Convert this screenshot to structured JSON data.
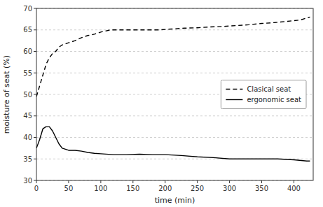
{
  "chart_data": {
    "type": "line",
    "xlabel": "time (min)",
    "ylabel": "moisture of seat (%)",
    "xlim": [
      0,
      430
    ],
    "ylim": [
      30,
      70
    ],
    "xticks": [
      0,
      50,
      100,
      150,
      200,
      250,
      300,
      350,
      400
    ],
    "yticks": [
      30,
      35,
      40,
      45,
      50,
      55,
      60,
      65,
      70
    ],
    "grid": true,
    "legend": "right",
    "series": [
      {
        "name": "Clasical seat",
        "color": "#000000",
        "line_style": "dashed",
        "x": [
          0,
          5,
          10,
          15,
          20,
          25,
          30,
          35,
          40,
          50,
          60,
          70,
          80,
          90,
          100,
          115,
          130,
          150,
          170,
          190,
          210,
          230,
          250,
          270,
          290,
          310,
          330,
          350,
          370,
          390,
          410,
          425
        ],
        "values": [
          49.5,
          52.0,
          54.5,
          57.0,
          58.5,
          59.5,
          60.0,
          61.0,
          61.5,
          62.0,
          62.5,
          63.2,
          63.7,
          64.0,
          64.5,
          65.0,
          65.0,
          65.0,
          65.0,
          65.0,
          65.2,
          65.4,
          65.5,
          65.7,
          65.8,
          66.0,
          66.2,
          66.5,
          66.7,
          67.0,
          67.3,
          68.0
        ]
      },
      {
        "name": "ergonomic seat",
        "color": "#000000",
        "line_style": "solid",
        "x": [
          0,
          5,
          10,
          15,
          20,
          25,
          30,
          35,
          40,
          50,
          60,
          70,
          80,
          90,
          100,
          120,
          140,
          160,
          180,
          200,
          225,
          250,
          275,
          300,
          325,
          350,
          375,
          400,
          420,
          425
        ],
        "values": [
          37.5,
          39.5,
          42.0,
          42.5,
          42.5,
          41.5,
          40.0,
          38.5,
          37.5,
          37.0,
          37.0,
          36.8,
          36.5,
          36.3,
          36.2,
          36.0,
          36.0,
          36.1,
          36.0,
          36.0,
          35.8,
          35.5,
          35.3,
          35.0,
          35.0,
          35.0,
          35.0,
          34.8,
          34.5,
          34.5
        ]
      }
    ]
  }
}
